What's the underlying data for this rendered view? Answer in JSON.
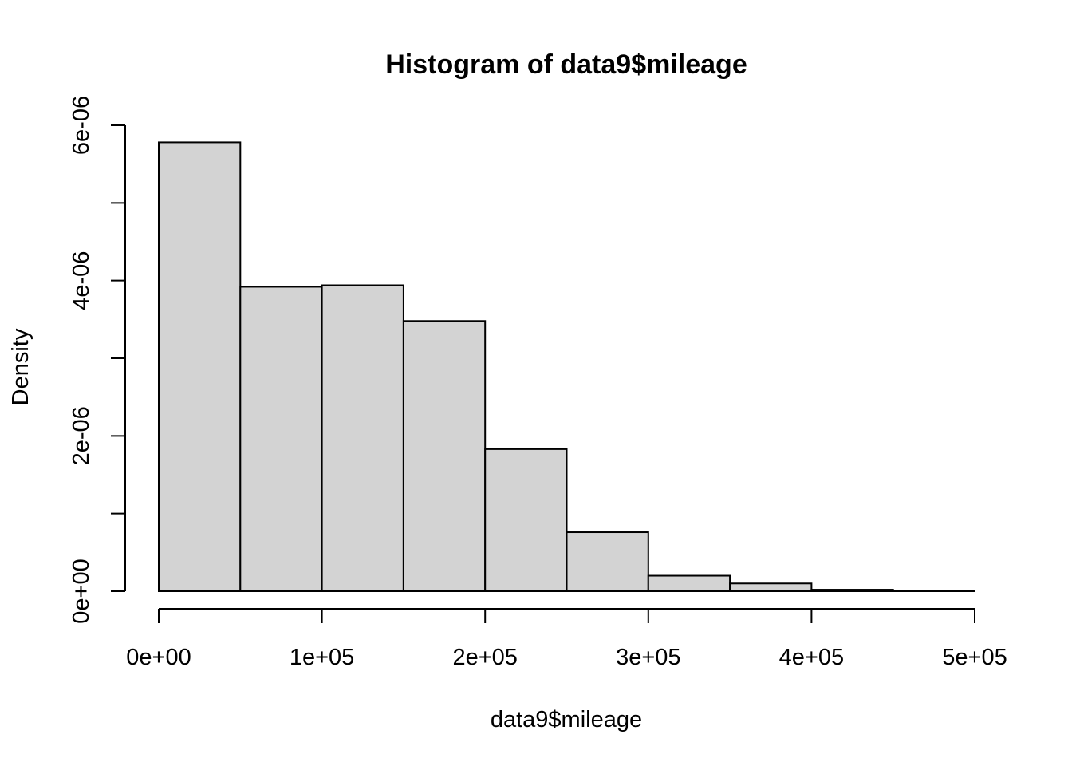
{
  "chart_data": {
    "type": "bar",
    "title": "Histogram of data9$mileage",
    "xlabel": "data9$mileage",
    "ylabel": "Density",
    "bar_color": "#d3d3d3",
    "border_color": "#000000",
    "bins": [
      {
        "from": 0,
        "to": 50000,
        "density": 5.78e-06
      },
      {
        "from": 50000,
        "to": 100000,
        "density": 3.92e-06
      },
      {
        "from": 100000,
        "to": 150000,
        "density": 3.94e-06
      },
      {
        "from": 150000,
        "to": 200000,
        "density": 3.48e-06
      },
      {
        "from": 200000,
        "to": 250000,
        "density": 1.83e-06
      },
      {
        "from": 250000,
        "to": 300000,
        "density": 7.6e-07
      },
      {
        "from": 300000,
        "to": 350000,
        "density": 2e-07
      },
      {
        "from": 350000,
        "to": 400000,
        "density": 1e-07
      },
      {
        "from": 400000,
        "to": 450000,
        "density": 2e-08
      },
      {
        "from": 450000,
        "to": 500000,
        "density": 1e-08
      }
    ],
    "xlim": [
      0,
      500000
    ],
    "ylim": [
      0,
      6e-06
    ],
    "x_ticks": [
      {
        "value": 0,
        "label": "0e+00"
      },
      {
        "value": 100000,
        "label": "1e+05"
      },
      {
        "value": 200000,
        "label": "2e+05"
      },
      {
        "value": 300000,
        "label": "3e+05"
      },
      {
        "value": 400000,
        "label": "4e+05"
      },
      {
        "value": 500000,
        "label": "5e+05"
      }
    ],
    "y_ticks": [
      {
        "value": 0,
        "label": "0e+00"
      },
      {
        "value": 1e-06,
        "label": ""
      },
      {
        "value": 2e-06,
        "label": "2e-06"
      },
      {
        "value": 3e-06,
        "label": ""
      },
      {
        "value": 4e-06,
        "label": "4e-06"
      },
      {
        "value": 5e-06,
        "label": ""
      },
      {
        "value": 6e-06,
        "label": "6e-06"
      }
    ],
    "grid": false,
    "legend": "none"
  }
}
